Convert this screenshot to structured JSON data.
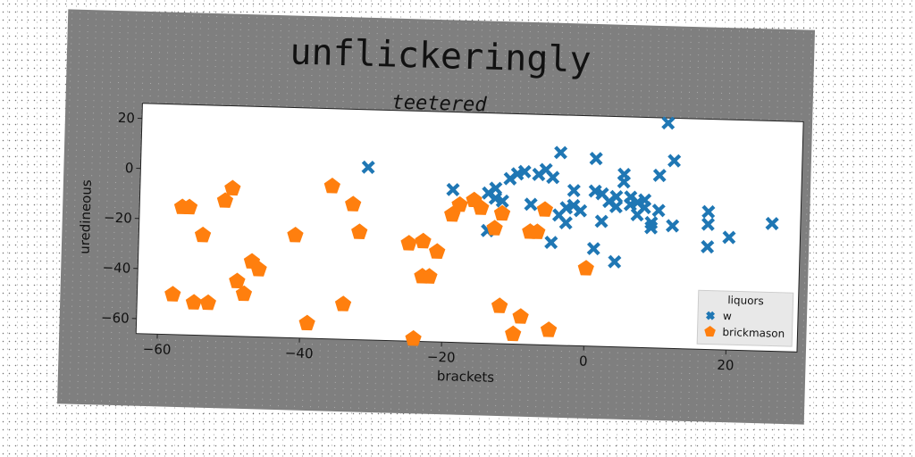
{
  "chart_data": {
    "type": "scatter",
    "title": "unflickeringly",
    "subtitle": "teetered",
    "xlabel": "brackets",
    "ylabel": "uredineous",
    "xlim": [
      -63,
      30
    ],
    "ylim": [
      -66,
      26
    ],
    "xticks": [
      -60,
      -40,
      -20,
      0,
      20
    ],
    "yticks": [
      20,
      0,
      -20,
      -40,
      -60
    ],
    "legend": {
      "title": "liquors",
      "placement": "lower-right"
    },
    "series": [
      {
        "name": "w",
        "marker": "x",
        "color": "#1f77b4",
        "points": [
          [
            -31,
            3
          ],
          [
            -19,
            -5
          ],
          [
            -14,
            -6
          ],
          [
            -13,
            -4
          ],
          [
            -13,
            -8
          ],
          [
            -12,
            -9
          ],
          [
            -11,
            0
          ],
          [
            -10,
            2
          ],
          [
            -9,
            3
          ],
          [
            -8,
            -10
          ],
          [
            -7,
            2
          ],
          [
            -6,
            4
          ],
          [
            -5,
            1
          ],
          [
            -4,
            11
          ],
          [
            -4,
            -14
          ],
          [
            -3,
            -11
          ],
          [
            -2,
            -4
          ],
          [
            -2,
            -10
          ],
          [
            -1,
            -12
          ],
          [
            1,
            -4
          ],
          [
            1,
            9
          ],
          [
            2,
            -16
          ],
          [
            2,
            -5
          ],
          [
            3,
            -8
          ],
          [
            4,
            -10
          ],
          [
            4,
            -6
          ],
          [
            5,
            0
          ],
          [
            5,
            3
          ],
          [
            6,
            -6
          ],
          [
            6,
            -9
          ],
          [
            7,
            -8
          ],
          [
            7,
            -13
          ],
          [
            8,
            -10
          ],
          [
            8,
            -7
          ],
          [
            9,
            -16
          ],
          [
            9,
            -18
          ],
          [
            10,
            -11
          ],
          [
            10,
            3
          ],
          [
            11,
            24
          ],
          [
            12,
            -17
          ],
          [
            12,
            9
          ],
          [
            -5,
            -25
          ],
          [
            1,
            -27
          ],
          [
            4,
            -32
          ],
          [
            17,
            -11
          ],
          [
            17,
            -16
          ],
          [
            17,
            -25
          ],
          [
            20,
            -21
          ],
          [
            26,
            -15
          ],
          [
            -14,
            -21
          ],
          [
            -3,
            -17
          ]
        ]
      },
      {
        "name": "brickmason",
        "marker": "pentagon",
        "color": "#ff7f0e",
        "points": [
          [
            -58,
            -50
          ],
          [
            -57,
            -15
          ],
          [
            -56,
            -15
          ],
          [
            -55,
            -53
          ],
          [
            -54,
            -26
          ],
          [
            -53,
            -53
          ],
          [
            -51,
            -12
          ],
          [
            -50,
            -7
          ],
          [
            -49,
            -44
          ],
          [
            -48,
            -49
          ],
          [
            -47,
            -36
          ],
          [
            -46,
            -39
          ],
          [
            -41,
            -25
          ],
          [
            -39,
            -60
          ],
          [
            -36,
            -5
          ],
          [
            -34,
            -52
          ],
          [
            -33,
            -12
          ],
          [
            -32,
            -23
          ],
          [
            -25,
            -27
          ],
          [
            -24,
            -65
          ],
          [
            -23,
            -26
          ],
          [
            -23,
            -40
          ],
          [
            -22,
            -40
          ],
          [
            -21,
            -30
          ],
          [
            -19,
            -15
          ],
          [
            -18,
            -11
          ],
          [
            -16,
            -9
          ],
          [
            -15,
            -12
          ],
          [
            -13,
            -20
          ],
          [
            -12,
            -51
          ],
          [
            -12,
            -14
          ],
          [
            -10,
            -62
          ],
          [
            -9,
            -55
          ],
          [
            -8,
            -21
          ],
          [
            -7,
            -21
          ],
          [
            -6,
            -12
          ],
          [
            -5,
            -60
          ],
          [
            0,
            -35
          ]
        ]
      }
    ]
  }
}
